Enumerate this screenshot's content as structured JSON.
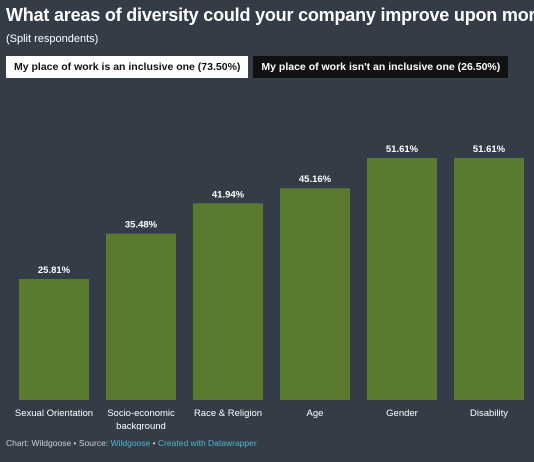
{
  "header": {
    "title": "What areas of diversity could your company improve upon more?",
    "subtitle": "(Split respondents)"
  },
  "tabs": [
    {
      "label": "My place of work is an inclusive one (73.50%)",
      "active": true
    },
    {
      "label": "My place of work isn't an inclusive one (26.50%)",
      "active": false
    }
  ],
  "footer": {
    "prefix": "Chart: Wildgoose • Source: ",
    "source": "Wildgoose",
    "sep": " • ",
    "created": "Created with Datawrapper"
  },
  "colors": {
    "background": "#343c48",
    "bar": "#5a7a30",
    "link": "#52b4c9"
  },
  "chart_data": {
    "type": "bar",
    "categories": [
      "Sexual Orientation",
      "Socio-economic background",
      "Race & Religion",
      "Age",
      "Gender",
      "Disability"
    ],
    "category_lines": [
      [
        "Sexual Orientation"
      ],
      [
        "Socio-economic",
        "background"
      ],
      [
        "Race & Religion"
      ],
      [
        "Age"
      ],
      [
        "Gender"
      ],
      [
        "Disability"
      ]
    ],
    "values": [
      25.81,
      35.48,
      41.94,
      45.16,
      51.61,
      51.61
    ],
    "value_labels": [
      "25.81%",
      "35.48%",
      "41.94%",
      "45.16%",
      "51.61%",
      "51.61%"
    ],
    "ylim": [
      0,
      51.61
    ],
    "grid": false,
    "legend": "none"
  }
}
